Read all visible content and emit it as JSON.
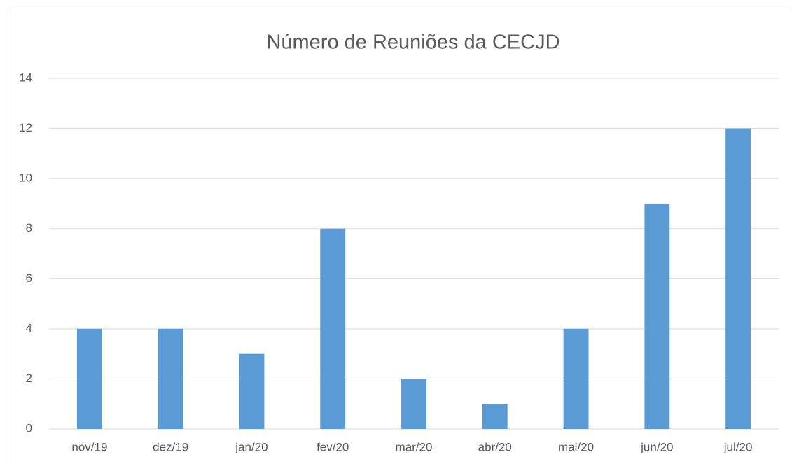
{
  "chart_data": {
    "type": "bar",
    "title": "Número de Reuniões da CECJD",
    "categories": [
      "nov/19",
      "dez/19",
      "jan/20",
      "fev/20",
      "mar/20",
      "abr/20",
      "mai/20",
      "jun/20",
      "jul/20"
    ],
    "values": [
      4,
      4,
      3,
      8,
      2,
      1,
      4,
      9,
      12
    ],
    "color": "#5b9bd5",
    "ylim": [
      0,
      14
    ],
    "yticks": [
      0,
      2,
      4,
      6,
      8,
      10,
      12,
      14
    ],
    "grid": true
  }
}
